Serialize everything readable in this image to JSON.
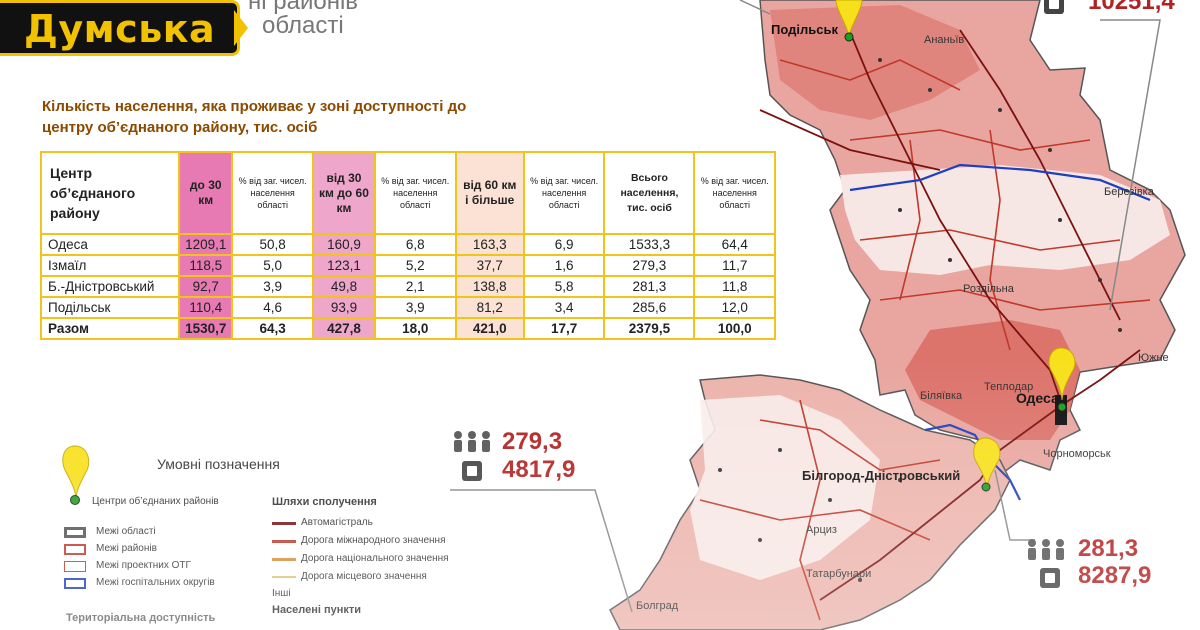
{
  "brand": {
    "name": "Думська"
  },
  "header_fragment": {
    "line1": "ні районів",
    "line2": "області"
  },
  "table": {
    "title": "Кількість населення, яка проживає у зоні доступності до центру об’єднаного району, тис. осіб",
    "headers": [
      "Центр об’єднаного району",
      "до 30 км",
      "% від заг. чисел. населення області",
      "від 30 км до 60 км",
      "% від заг. чисел. населення області",
      "від 60 км і більше",
      "% від заг. чисел. населення області",
      "Всього населення, тис. осіб",
      "% від заг. чисел. населення області"
    ],
    "rows": [
      [
        "Одеса",
        "1209,1",
        "50,8",
        "160,9",
        "6,8",
        "163,3",
        "6,9",
        "1533,3",
        "64,4"
      ],
      [
        "Ізмаїл",
        "118,5",
        "5,0",
        "123,1",
        "5,2",
        "37,7",
        "1,6",
        "279,3",
        "11,7"
      ],
      [
        "Б.-Дністровський",
        "92,7",
        "3,9",
        "49,8",
        "2,1",
        "138,8",
        "5,8",
        "281,3",
        "11,8"
      ],
      [
        "Подільськ",
        "110,4",
        "4,6",
        "93,9",
        "3,9",
        "81,2",
        "3,4",
        "285,6",
        "12,0"
      ],
      [
        "Разом",
        "1530,7",
        "64,3",
        "427,8",
        "18,0",
        "421,0",
        "17,7",
        "2379,5",
        "100,0"
      ]
    ]
  },
  "map": {
    "places": [
      "Ананьїв",
      "Березівка",
      "Роздільна",
      "Теплодар",
      "Біляївка",
      "Южне",
      "Чорноморськ",
      "Арциз",
      "Татарбунари",
      "Болград"
    ],
    "centers": [
      "Подільськ",
      "Одеса",
      "Білгород-Дністровський"
    ],
    "stats": [
      {
        "people": "279,3",
        "area": "4817,9"
      },
      {
        "people": "281,3",
        "area": "8287,9"
      },
      {
        "people": "",
        "area": "10251,4"
      }
    ]
  },
  "legend": {
    "title": "Умовні позначення",
    "center_label": "Центри об’єднаних районів",
    "borders": [
      "Межі області",
      "Межі районів",
      "Межі проектних ОТГ",
      "Межі госпітальних округів"
    ],
    "roads_title": "Шляхи сполучення",
    "roads": [
      "Автомагістраль",
      "Дорога міжнародного значення",
      "Дорога національного значення",
      "Дорога місцевого значення",
      "Інші"
    ],
    "settlements_title": "Населені пункти",
    "accessibility_title": "Територіальна доступність"
  },
  "colors": {
    "brand_yellow": "#f2c200",
    "brand_black": "#111111",
    "accent_red": "#b22222",
    "table_border": "#f0c419",
    "col_30": "#e779b3",
    "col_60": "#eea6cb",
    "col_more": "#fbe2d4",
    "pin": "#f7e01b"
  },
  "icons": [
    "pin-icon",
    "people-icon",
    "building-icon"
  ]
}
